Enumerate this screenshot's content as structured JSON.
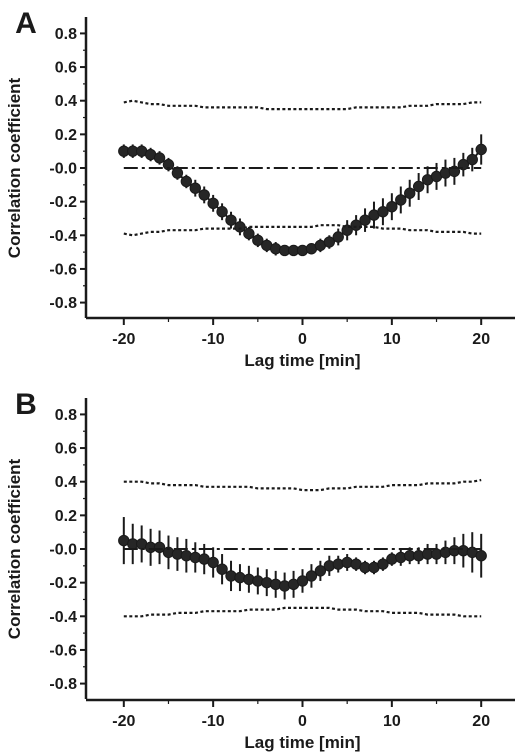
{
  "chart_data": [
    {
      "panel": "A",
      "type": "line",
      "xlabel": "Lag time [min]",
      "ylabel": "Correlation coefficient",
      "xlim": [
        -23,
        23
      ],
      "ylim": [
        -0.85,
        0.85
      ],
      "xticks": [
        "-20",
        "-10",
        "0",
        "10",
        "20"
      ],
      "yticks": [
        "0.8",
        "0.6",
        "0.4",
        "0.2",
        "-0.0",
        "-0.2",
        "-0.4",
        "-0.6",
        "-0.8"
      ],
      "x": [
        -20,
        -19,
        -18,
        -17,
        -16,
        -15,
        -14,
        -13,
        -12,
        -11,
        -10,
        -9,
        -8,
        -7,
        -6,
        -5,
        -4,
        -3,
        -2,
        -1,
        0,
        1,
        2,
        3,
        4,
        5,
        6,
        7,
        8,
        9,
        10,
        11,
        12,
        13,
        14,
        15,
        16,
        17,
        18,
        19,
        20
      ],
      "series": [
        {
          "role": "data",
          "style": "markers-errorbars",
          "values": [
            0.1,
            0.1,
            0.1,
            0.08,
            0.06,
            0.02,
            -0.03,
            -0.08,
            -0.12,
            -0.16,
            -0.21,
            -0.26,
            -0.31,
            -0.35,
            -0.39,
            -0.43,
            -0.46,
            -0.48,
            -0.49,
            -0.49,
            -0.49,
            -0.48,
            -0.46,
            -0.44,
            -0.41,
            -0.37,
            -0.34,
            -0.31,
            -0.28,
            -0.26,
            -0.23,
            -0.19,
            -0.15,
            -0.11,
            -0.07,
            -0.05,
            -0.03,
            -0.02,
            0.02,
            0.05,
            0.11
          ],
          "errors": [
            0.04,
            0.04,
            0.04,
            0.04,
            0.04,
            0.04,
            0.04,
            0.04,
            0.05,
            0.05,
            0.05,
            0.05,
            0.05,
            0.05,
            0.04,
            0.04,
            0.04,
            0.04,
            0.03,
            0.03,
            0.03,
            0.03,
            0.04,
            0.04,
            0.05,
            0.06,
            0.06,
            0.07,
            0.08,
            0.08,
            0.08,
            0.08,
            0.08,
            0.08,
            0.08,
            0.08,
            0.08,
            0.08,
            0.07,
            0.07,
            0.09
          ]
        },
        {
          "role": "upper-band",
          "style": "dotted",
          "values": [
            0.39,
            0.4,
            0.39,
            0.38,
            0.38,
            0.37,
            0.37,
            0.37,
            0.37,
            0.36,
            0.36,
            0.36,
            0.36,
            0.36,
            0.36,
            0.36,
            0.35,
            0.35,
            0.35,
            0.35,
            0.35,
            0.35,
            0.35,
            0.35,
            0.35,
            0.35,
            0.36,
            0.36,
            0.36,
            0.36,
            0.36,
            0.36,
            0.37,
            0.37,
            0.37,
            0.38,
            0.38,
            0.38,
            0.38,
            0.39,
            0.39
          ]
        },
        {
          "role": "lower-band",
          "style": "dotted",
          "values": [
            -0.39,
            -0.4,
            -0.39,
            -0.38,
            -0.38,
            -0.37,
            -0.37,
            -0.37,
            -0.37,
            -0.36,
            -0.36,
            -0.36,
            -0.36,
            -0.36,
            -0.35,
            -0.35,
            -0.35,
            -0.35,
            -0.35,
            -0.35,
            -0.35,
            -0.35,
            -0.34,
            -0.34,
            -0.34,
            -0.35,
            -0.35,
            -0.35,
            -0.35,
            -0.36,
            -0.36,
            -0.36,
            -0.37,
            -0.37,
            -0.37,
            -0.38,
            -0.38,
            -0.38,
            -0.38,
            -0.39,
            -0.39
          ]
        },
        {
          "role": "center",
          "style": "dash-dot",
          "values": [
            0.0,
            0.0,
            0.0,
            0.0,
            0.0,
            0.0,
            0.0,
            0.0,
            0.0,
            0.0,
            0.0,
            0.0,
            0.0,
            0.0,
            0.0,
            0.0,
            0.0,
            0.0,
            0.0,
            0.0,
            0.0,
            0.0,
            0.0,
            0.0,
            0.0,
            0.0,
            0.0,
            0.0,
            0.0,
            0.0,
            0.0,
            0.0,
            0.0,
            0.0,
            0.0,
            0.0,
            0.0,
            0.0,
            0.0,
            0.0,
            0.0
          ]
        }
      ]
    },
    {
      "panel": "B",
      "type": "line",
      "xlabel": "Lag time [min]",
      "ylabel": "Correlation coefficient",
      "xlim": [
        -23,
        23
      ],
      "ylim": [
        -0.85,
        0.85
      ],
      "xticks": [
        "-20",
        "-10",
        "0",
        "10",
        "20"
      ],
      "yticks": [
        "0.8",
        "0.6",
        "0.4",
        "0.2",
        "-0.0",
        "-0.2",
        "-0.4",
        "-0.6",
        "-0.8"
      ],
      "x": [
        -20,
        -19,
        -18,
        -17,
        -16,
        -15,
        -14,
        -13,
        -12,
        -11,
        -10,
        -9,
        -8,
        -7,
        -6,
        -5,
        -4,
        -3,
        -2,
        -1,
        0,
        1,
        2,
        3,
        4,
        5,
        6,
        7,
        8,
        9,
        10,
        11,
        12,
        13,
        14,
        15,
        16,
        17,
        18,
        19,
        20
      ],
      "series": [
        {
          "role": "data",
          "style": "markers-errorbars",
          "values": [
            0.05,
            0.03,
            0.03,
            0.01,
            0.01,
            -0.02,
            -0.03,
            -0.04,
            -0.05,
            -0.06,
            -0.08,
            -0.12,
            -0.16,
            -0.17,
            -0.18,
            -0.19,
            -0.2,
            -0.21,
            -0.22,
            -0.21,
            -0.19,
            -0.16,
            -0.13,
            -0.1,
            -0.09,
            -0.08,
            -0.09,
            -0.11,
            -0.11,
            -0.09,
            -0.06,
            -0.05,
            -0.04,
            -0.04,
            -0.03,
            -0.03,
            -0.02,
            -0.01,
            -0.01,
            -0.02,
            -0.04
          ],
          "errors": [
            0.14,
            0.12,
            0.11,
            0.11,
            0.1,
            0.1,
            0.1,
            0.1,
            0.09,
            0.09,
            0.09,
            0.09,
            0.09,
            0.08,
            0.08,
            0.08,
            0.08,
            0.08,
            0.08,
            0.08,
            0.07,
            0.07,
            0.06,
            0.06,
            0.05,
            0.05,
            0.04,
            0.04,
            0.04,
            0.04,
            0.04,
            0.05,
            0.05,
            0.05,
            0.06,
            0.06,
            0.07,
            0.08,
            0.1,
            0.12,
            0.13
          ]
        },
        {
          "role": "upper-band",
          "style": "dotted",
          "values": [
            0.4,
            0.4,
            0.4,
            0.39,
            0.39,
            0.38,
            0.38,
            0.38,
            0.38,
            0.37,
            0.37,
            0.37,
            0.37,
            0.37,
            0.37,
            0.36,
            0.36,
            0.36,
            0.36,
            0.36,
            0.35,
            0.35,
            0.35,
            0.36,
            0.36,
            0.36,
            0.37,
            0.37,
            0.37,
            0.37,
            0.38,
            0.38,
            0.38,
            0.38,
            0.39,
            0.39,
            0.39,
            0.39,
            0.4,
            0.4,
            0.41
          ]
        },
        {
          "role": "lower-band",
          "style": "dotted",
          "values": [
            -0.4,
            -0.4,
            -0.4,
            -0.39,
            -0.39,
            -0.39,
            -0.38,
            -0.38,
            -0.38,
            -0.37,
            -0.37,
            -0.37,
            -0.37,
            -0.37,
            -0.36,
            -0.36,
            -0.36,
            -0.36,
            -0.35,
            -0.35,
            -0.35,
            -0.35,
            -0.35,
            -0.35,
            -0.36,
            -0.36,
            -0.36,
            -0.37,
            -0.37,
            -0.37,
            -0.38,
            -0.38,
            -0.38,
            -0.38,
            -0.39,
            -0.39,
            -0.39,
            -0.39,
            -0.4,
            -0.4,
            -0.4
          ]
        },
        {
          "role": "center",
          "style": "dash-dot",
          "values": [
            0.0,
            0.0,
            0.0,
            0.0,
            0.0,
            0.0,
            0.0,
            0.0,
            0.0,
            0.0,
            0.0,
            0.0,
            0.0,
            0.0,
            0.0,
            0.0,
            0.0,
            0.0,
            0.0,
            0.0,
            0.0,
            0.0,
            0.0,
            0.0,
            0.0,
            0.0,
            0.0,
            0.0,
            0.0,
            0.0,
            0.0,
            0.0,
            0.0,
            0.0,
            0.0,
            0.0,
            0.0,
            0.0,
            0.0,
            0.0,
            0.0
          ]
        }
      ]
    }
  ]
}
